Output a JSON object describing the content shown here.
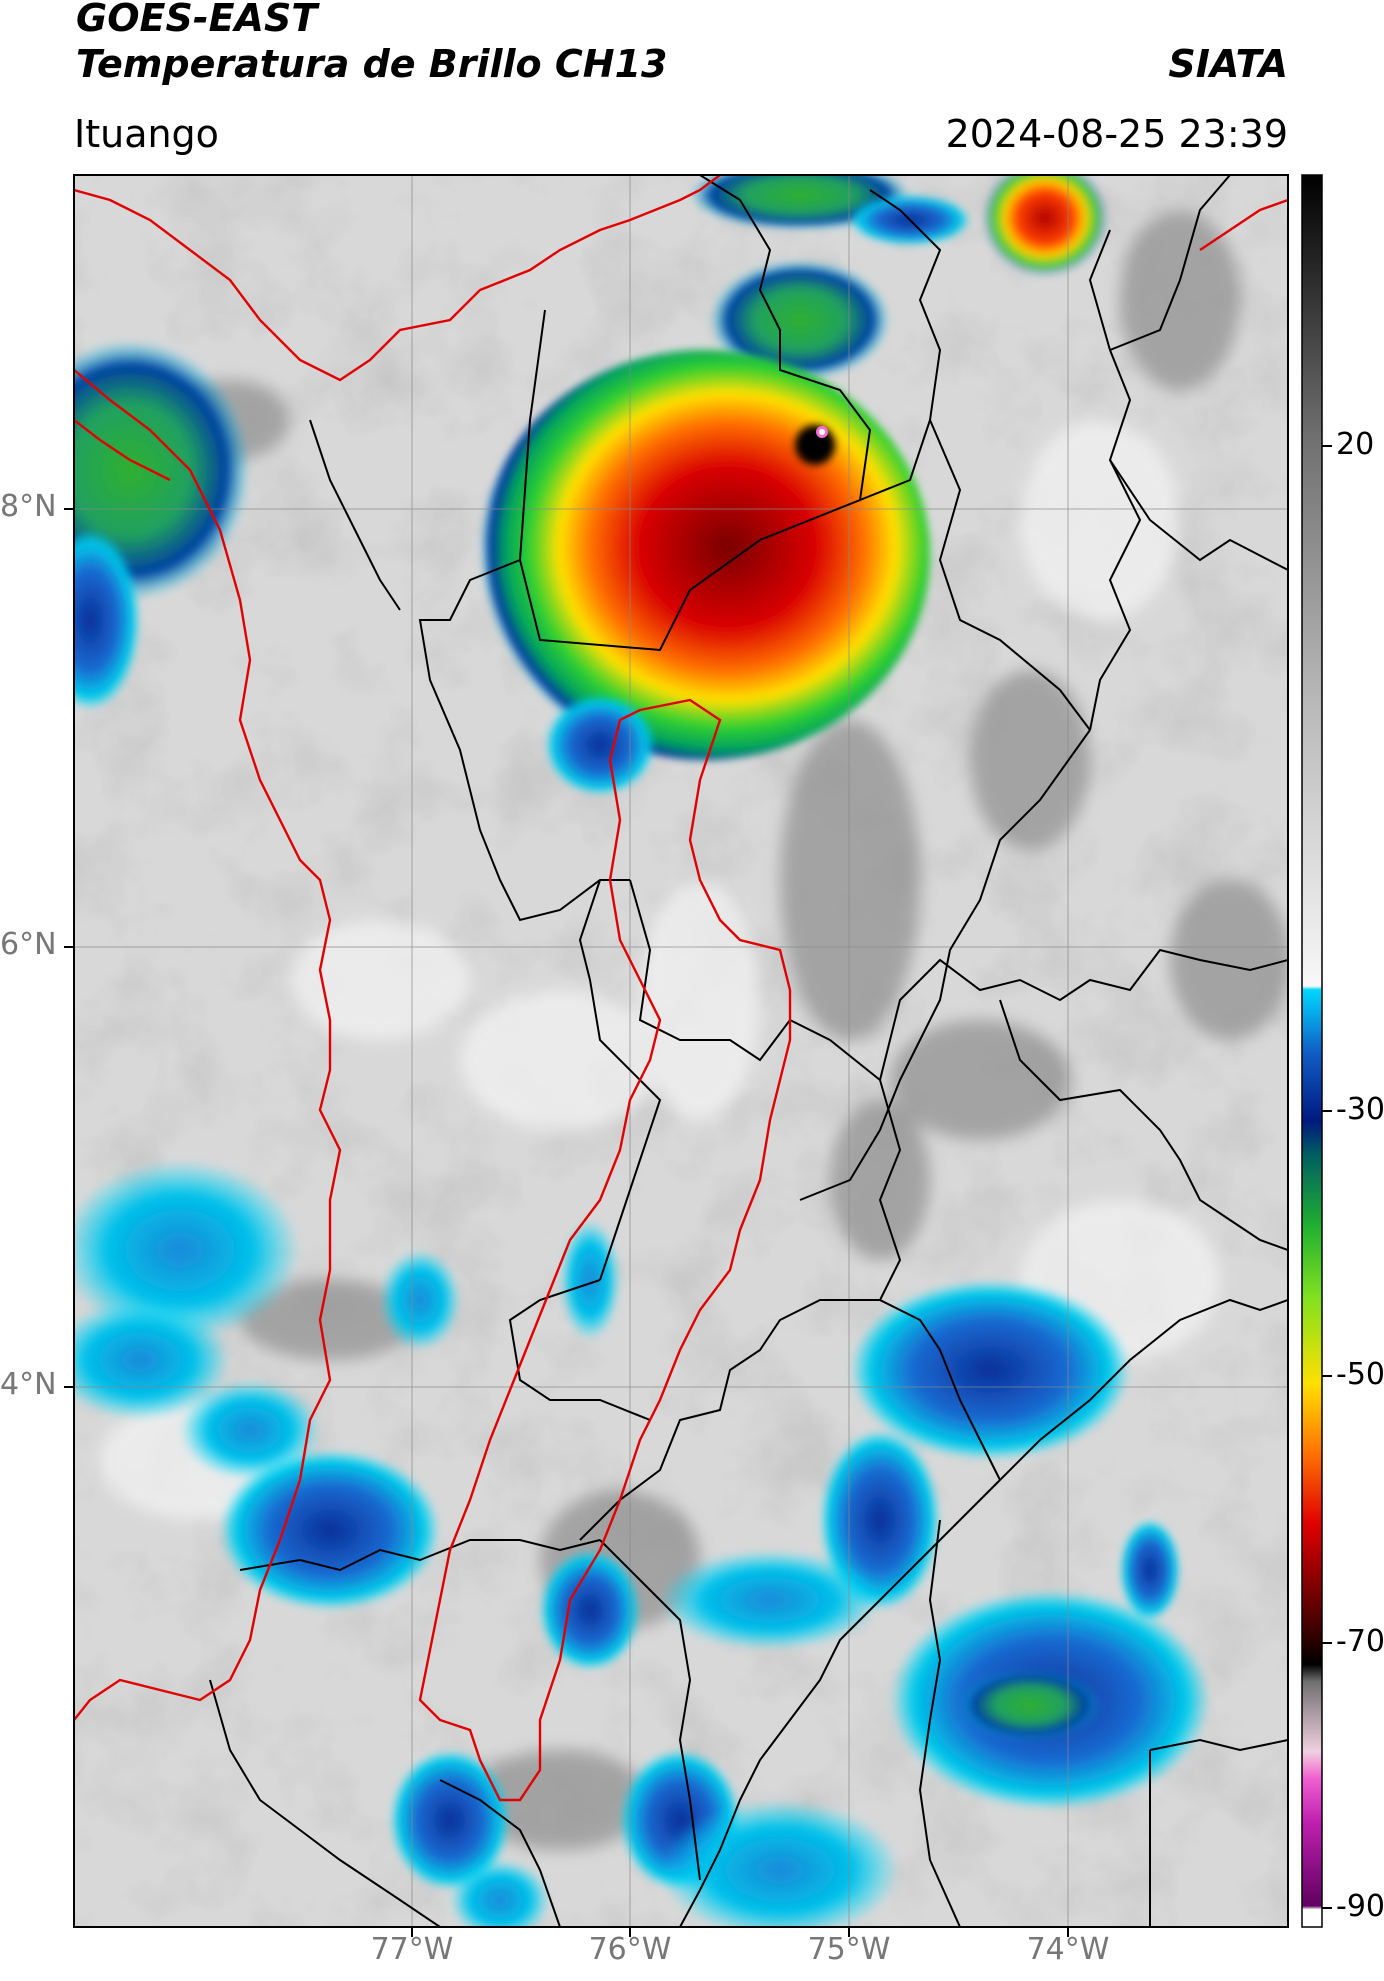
{
  "header": {
    "satellite": "GOES-EAST",
    "product": "Temperatura de Brillo CH13",
    "brand": "SIATA",
    "location": "Ituango",
    "timestamp": "2024-08-25 23:39"
  },
  "map": {
    "lat_labels": [
      "8°N",
      "6°N",
      "4°N"
    ],
    "lon_labels": [
      "77°W",
      "76°W",
      "75°W",
      "74°W"
    ],
    "colors": {
      "border_department": "#e10000",
      "border_region": "#000000",
      "gridline": "#888888"
    }
  },
  "colorbar": {
    "ticks": [
      "20",
      "-30",
      "-50",
      "-70",
      "-90"
    ],
    "range": [
      -90,
      40
    ],
    "unit_scale": "brightness temperature (°C)",
    "stops": [
      {
        "value": 40,
        "color": "#000000"
      },
      {
        "value": -20,
        "color": "#f7f7f7"
      },
      {
        "value": -21,
        "color": "#00e5ff"
      },
      {
        "value": -30,
        "color": "#00208a"
      },
      {
        "value": -40,
        "color": "#20c030"
      },
      {
        "value": -50,
        "color": "#ffe000"
      },
      {
        "value": -60,
        "color": "#e00000"
      },
      {
        "value": -67,
        "color": "#600000"
      },
      {
        "value": -71,
        "color": "#000000"
      },
      {
        "value": -78,
        "color": "#e8c8d0"
      },
      {
        "value": -81,
        "color": "#f040c0"
      },
      {
        "value": -88,
        "color": "#600060"
      },
      {
        "value": -89,
        "color": "#ffffff"
      }
    ]
  }
}
